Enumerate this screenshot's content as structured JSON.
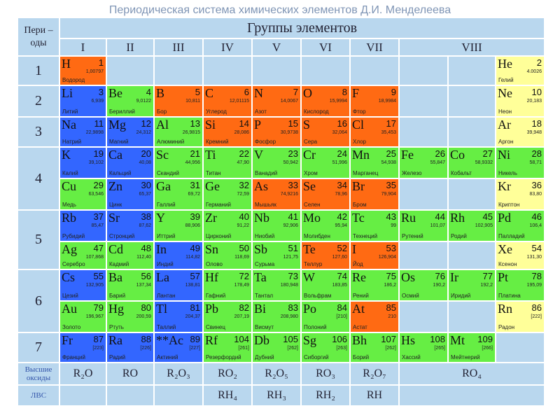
{
  "title": "Периодическая система химических элементов Д.И. Менделеева",
  "periods_header": "Пери – оды",
  "groups_header": "Группы элементов",
  "groups": [
    "I",
    "II",
    "III",
    "IV",
    "V",
    "VI",
    "VII",
    "VIII"
  ],
  "periods": [
    {
      "label": "1",
      "rows": [
        [
          {
            "symbol": "H",
            "number": 1,
            "mass": "1,00797",
            "name": "Водород",
            "color": "#ff6a13"
          },
          null,
          null,
          null,
          null,
          null,
          null,
          null,
          null,
          {
            "symbol": "He",
            "number": 2,
            "mass": "4.0026",
            "name": "Гелий",
            "color": "#ffff99"
          }
        ]
      ]
    },
    {
      "label": "2",
      "rows": [
        [
          {
            "symbol": "Li",
            "number": 3,
            "mass": "6,939",
            "name": "Литий",
            "color": "#3366ff"
          },
          {
            "symbol": "Be",
            "number": 4,
            "mass": "9,0122",
            "name": "Бериллий",
            "color": "#66ee44"
          },
          {
            "symbol": "B",
            "number": 5,
            "mass": "10,811",
            "name": "Бор",
            "color": "#ff6a13"
          },
          {
            "symbol": "C",
            "number": 6,
            "mass": "12,01115",
            "name": "Углерод",
            "color": "#ff6a13"
          },
          {
            "symbol": "N",
            "number": 7,
            "mass": "14,0067",
            "name": "Азот",
            "color": "#ff6a13"
          },
          {
            "symbol": "O",
            "number": 8,
            "mass": "15,9994",
            "name": "Кислород",
            "color": "#ff6a13"
          },
          {
            "symbol": "F",
            "number": 9,
            "mass": "18,9984",
            "name": "Фтор",
            "color": "#ff6a13"
          },
          null,
          null,
          {
            "symbol": "Ne",
            "number": 10,
            "mass": "20,183",
            "name": "Неон",
            "color": "#ffff99"
          }
        ]
      ]
    },
    {
      "label": "3",
      "rows": [
        [
          {
            "symbol": "Na",
            "number": 11,
            "mass": "22,9898",
            "name": "Натрий",
            "color": "#3366ff"
          },
          {
            "symbol": "Mg",
            "number": 12,
            "mass": "24,312",
            "name": "Магний",
            "color": "#3366ff"
          },
          {
            "symbol": "Al",
            "number": 13,
            "mass": "26,9815",
            "name": "Алюминий",
            "color": "#66ee44"
          },
          {
            "symbol": "Si",
            "number": 14,
            "mass": "28,086",
            "name": "Кремний",
            "color": "#ff6a13"
          },
          {
            "symbol": "P",
            "number": 15,
            "mass": "30,9738",
            "name": "Фосфор",
            "color": "#ff6a13"
          },
          {
            "symbol": "S",
            "number": 16,
            "mass": "32,064",
            "name": "Сера",
            "color": "#ff6a13"
          },
          {
            "symbol": "Cl",
            "number": 17,
            "mass": "35,453",
            "name": "Хлор",
            "color": "#ff6a13"
          },
          null,
          null,
          {
            "symbol": "Ar",
            "number": 18,
            "mass": "39,948",
            "name": "Аргон",
            "color": "#ffff99"
          }
        ]
      ]
    },
    {
      "label": "4",
      "rows": [
        [
          {
            "symbol": "K",
            "number": 19,
            "mass": "39,102",
            "name": "Калий",
            "color": "#3366ff"
          },
          {
            "symbol": "Ca",
            "number": 20,
            "mass": "40,08",
            "name": "Кальций",
            "color": "#3366ff"
          },
          {
            "symbol": "Sc",
            "number": 21,
            "mass": "44,956",
            "name": "Скандий",
            "color": "#66ee44"
          },
          {
            "symbol": "Ti",
            "number": 22,
            "mass": "47,90",
            "name": "Титан",
            "color": "#66ee44"
          },
          {
            "symbol": "V",
            "number": 23,
            "mass": "50,942",
            "name": "Ванадий",
            "color": "#66ee44"
          },
          {
            "symbol": "Cr",
            "number": 24,
            "mass": "51,996",
            "name": "Хром",
            "color": "#66ee44"
          },
          {
            "symbol": "Mn",
            "number": 25,
            "mass": "54,938",
            "name": "Марганец",
            "color": "#66ee44"
          },
          {
            "symbol": "Fe",
            "number": 26,
            "mass": "55,847",
            "name": "Железо",
            "color": "#66ee44"
          },
          {
            "symbol": "Co",
            "number": 27,
            "mass": "58,9332",
            "name": "Кобальт",
            "color": "#66ee44"
          },
          {
            "symbol": "Ni",
            "number": 28,
            "mass": "58,71",
            "name": "Никель",
            "color": "#66ee44"
          }
        ],
        [
          {
            "symbol": "Cu",
            "number": 29,
            "mass": "63,546",
            "name": "Медь",
            "color": "#66ee44"
          },
          {
            "symbol": "Zn",
            "number": 30,
            "mass": "65,37",
            "name": "Цинк",
            "color": "#3366ff"
          },
          {
            "symbol": "Ga",
            "number": 31,
            "mass": "69,72",
            "name": "Галлий",
            "color": "#66ee44"
          },
          {
            "symbol": "Ge",
            "number": 32,
            "mass": "72,59",
            "name": "Германий",
            "color": "#66ee44"
          },
          {
            "symbol": "As",
            "number": 33,
            "mass": "74,9216",
            "name": "Мышьяк",
            "color": "#ff6a13"
          },
          {
            "symbol": "Se",
            "number": 34,
            "mass": "78,96",
            "name": "Селен",
            "color": "#ff6a13"
          },
          {
            "symbol": "Br",
            "number": 35,
            "mass": "79,904",
            "name": "Бром",
            "color": "#ff6a13"
          },
          null,
          null,
          {
            "symbol": "Kr",
            "number": 36,
            "mass": "83,80",
            "name": "Криптон",
            "color": "#ffff99"
          }
        ]
      ]
    },
    {
      "label": "5",
      "rows": [
        [
          {
            "symbol": "Rb",
            "number": 37,
            "mass": "85,47",
            "name": "Рубидий",
            "color": "#3366ff"
          },
          {
            "symbol": "Sr",
            "number": 38,
            "mass": "87,62",
            "name": "Стронций",
            "color": "#3366ff"
          },
          {
            "symbol": "Y",
            "number": 39,
            "mass": "88,906",
            "name": "Иттрий",
            "color": "#66ee44"
          },
          {
            "symbol": "Zr",
            "number": 40,
            "mass": "91,22",
            "name": "Цирконий",
            "color": "#66ee44"
          },
          {
            "symbol": "Nb",
            "number": 41,
            "mass": "92,906",
            "name": "Ниобий",
            "color": "#66ee44"
          },
          {
            "symbol": "Mo",
            "number": 42,
            "mass": "95,94",
            "name": "Молибден",
            "color": "#66ee44"
          },
          {
            "symbol": "Tc",
            "number": 43,
            "mass": "99",
            "name": "Технеций",
            "color": "#66ee44"
          },
          {
            "symbol": "Ru",
            "number": 44,
            "mass": "101,07",
            "name": "Рутений",
            "color": "#66ee44"
          },
          {
            "symbol": "Rh",
            "number": 45,
            "mass": "102,905",
            "name": "Родий",
            "color": "#66ee44"
          },
          {
            "symbol": "Pd",
            "number": 46,
            "mass": "106,4",
            "name": "Палладий",
            "color": "#66ee44"
          }
        ],
        [
          {
            "symbol": "Ag",
            "number": 47,
            "mass": "107,868",
            "name": "Серебро",
            "color": "#66ee44"
          },
          {
            "symbol": "Cd",
            "number": 48,
            "mass": "112,40",
            "name": "Кадмий",
            "color": "#66ee44"
          },
          {
            "symbol": "In",
            "number": 49,
            "mass": "114,82",
            "name": "Индий",
            "color": "#3366ff"
          },
          {
            "symbol": "Sn",
            "number": 50,
            "mass": "118,69",
            "name": "Олово",
            "color": "#66ee44"
          },
          {
            "symbol": "Sb",
            "number": 51,
            "mass": "121,75",
            "name": "Сурьма",
            "color": "#66ee44"
          },
          {
            "symbol": "Te",
            "number": 52,
            "mass": "127,60",
            "name": "Теллур",
            "color": "#ff6a13"
          },
          {
            "symbol": "I",
            "number": 53,
            "mass": "126,904",
            "name": "Йод",
            "color": "#ff6a13"
          },
          null,
          null,
          {
            "symbol": "Xe",
            "number": 54,
            "mass": "131,30",
            "name": "Ксенон",
            "color": "#ffff99"
          }
        ]
      ]
    },
    {
      "label": "6",
      "rows": [
        [
          {
            "symbol": "Cs",
            "number": 55,
            "mass": "132,905",
            "name": "Цезий",
            "color": "#3366ff"
          },
          {
            "symbol": "Ba",
            "number": 56,
            "mass": "137,34",
            "name": "Барий",
            "color": "#66ee44"
          },
          {
            "symbol": "La",
            "number": 57,
            "mass": "138,81",
            "name": "Лантан",
            "color": "#3366ff"
          },
          {
            "symbol": "Hf",
            "number": 72,
            "mass": "178,49",
            "name": "Гафний",
            "color": "#66ee44"
          },
          {
            "symbol": "Ta",
            "number": 73,
            "mass": "180,948",
            "name": "Тантал",
            "color": "#66ee44"
          },
          {
            "symbol": "W",
            "number": 74,
            "mass": "183,85",
            "name": "Вольфрам",
            "color": "#66ee44"
          },
          {
            "symbol": "Re",
            "number": 75,
            "mass": "186,2",
            "name": "Рений",
            "color": "#66ee44"
          },
          {
            "symbol": "Os",
            "number": 76,
            "mass": "190,2",
            "name": "Осмий",
            "color": "#66ee44"
          },
          {
            "symbol": "Ir",
            "number": 77,
            "mass": "192,2",
            "name": "Иридий",
            "color": "#66ee44"
          },
          {
            "symbol": "Pt",
            "number": 78,
            "mass": "195,09",
            "name": "Платина",
            "color": "#66ee44"
          }
        ],
        [
          {
            "symbol": "Au",
            "number": 79,
            "mass": "196,967",
            "name": "Золото",
            "color": "#66ee44"
          },
          {
            "symbol": "Hg",
            "number": 80,
            "mass": "200,59",
            "name": "Ртуть",
            "color": "#66ee44"
          },
          {
            "symbol": "Tl",
            "number": 81,
            "mass": "204,37",
            "name": "Таллий",
            "color": "#3366ff"
          },
          {
            "symbol": "Pb",
            "number": 82,
            "mass": "207,19",
            "name": "Свинец",
            "color": "#66ee44"
          },
          {
            "symbol": "Bi",
            "number": 83,
            "mass": "208,980",
            "name": "Висмут",
            "color": "#66ee44"
          },
          {
            "symbol": "Po",
            "number": 84,
            "mass": "[210]",
            "name": "Полоний",
            "color": "#66ee44"
          },
          {
            "symbol": "At",
            "number": 85,
            "mass": "210",
            "name": "Астат",
            "color": "#ff6a13"
          },
          null,
          null,
          {
            "symbol": "Rn",
            "number": 86,
            "mass": "[222]",
            "name": "Радон",
            "color": "#ffff99"
          }
        ]
      ]
    },
    {
      "label": "7",
      "rows": [
        [
          {
            "symbol": "Fr",
            "number": 87,
            "mass": "[223]",
            "name": "Франций",
            "color": "#3366ff"
          },
          {
            "symbol": "Ra",
            "number": 88,
            "mass": "[226]",
            "name": "Радий",
            "color": "#3366ff"
          },
          {
            "symbol": "**Ac",
            "number": 89,
            "mass": "[227]",
            "name": "Актиний",
            "color": "#3366ff"
          },
          {
            "symbol": "Rf",
            "number": 104,
            "mass": "[261]",
            "name": "Резерфордий",
            "color": "#66ee44"
          },
          {
            "symbol": "Db",
            "number": 105,
            "mass": "[262]",
            "name": "Дубний",
            "color": "#66ee44"
          },
          {
            "symbol": "Sg",
            "number": 106,
            "mass": "[263]",
            "name": "Сиборгий",
            "color": "#66ee44"
          },
          {
            "symbol": "Bh",
            "number": 107,
            "mass": "[262]",
            "name": "Борий",
            "color": "#66ee44"
          },
          {
            "symbol": "Hs",
            "number": 108,
            "mass": "[265]",
            "name": "Хассий",
            "color": "#66ee44"
          },
          {
            "symbol": "Mt",
            "number": 109,
            "mass": "[266]",
            "name": "Мейтнерий",
            "color": "#66ee44"
          },
          null
        ]
      ]
    }
  ],
  "oxides": {
    "label": "Высшие оксиды",
    "values": [
      "R₂O",
      "RO",
      "R₂O₃",
      "RO₂",
      "R₂O₅",
      "RO₃",
      "R₂O₇",
      "RO₄"
    ]
  },
  "hydrides": {
    "label": "ЛВС",
    "values": [
      null,
      null,
      null,
      "RH₄",
      "RH₃",
      "RH₂",
      "RH",
      null
    ]
  }
}
